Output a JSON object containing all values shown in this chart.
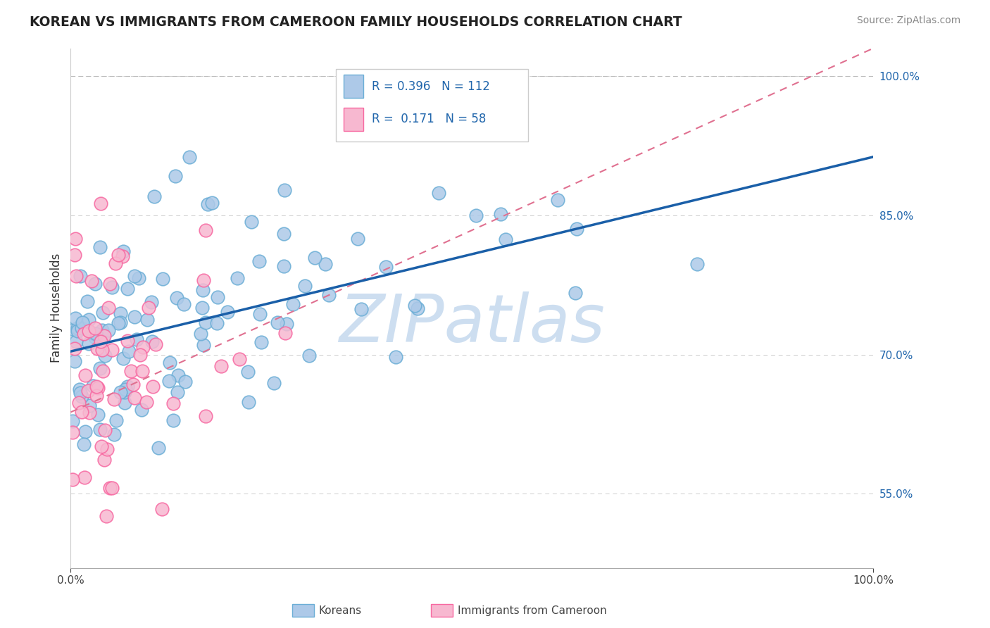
{
  "title": "KOREAN VS IMMIGRANTS FROM CAMEROON FAMILY HOUSEHOLDS CORRELATION CHART",
  "source": "Source: ZipAtlas.com",
  "ylabel": "Family Households",
  "xlim": [
    0.0,
    1.0
  ],
  "ylim": [
    0.47,
    1.03
  ],
  "ytick_positions": [
    0.55,
    0.7,
    0.85,
    1.0
  ],
  "ytick_labels": [
    "55.0%",
    "70.0%",
    "85.0%",
    "100.0%"
  ],
  "xtick_positions": [
    0.0,
    1.0
  ],
  "xtick_labels": [
    "0.0%",
    "100.0%"
  ],
  "blue_edge": "#6baed6",
  "pink_edge": "#f768a1",
  "line_blue": "#1a5fa8",
  "line_pink": "#e07090",
  "grid_color": "#cccccc",
  "watermark": "ZIPatlas",
  "watermark_color": "#c5d9ee",
  "right_tick_color": "#2166ac",
  "blue_regression": [
    0.668,
    0.848
  ],
  "pink_regression": [
    0.638,
    1.03
  ]
}
